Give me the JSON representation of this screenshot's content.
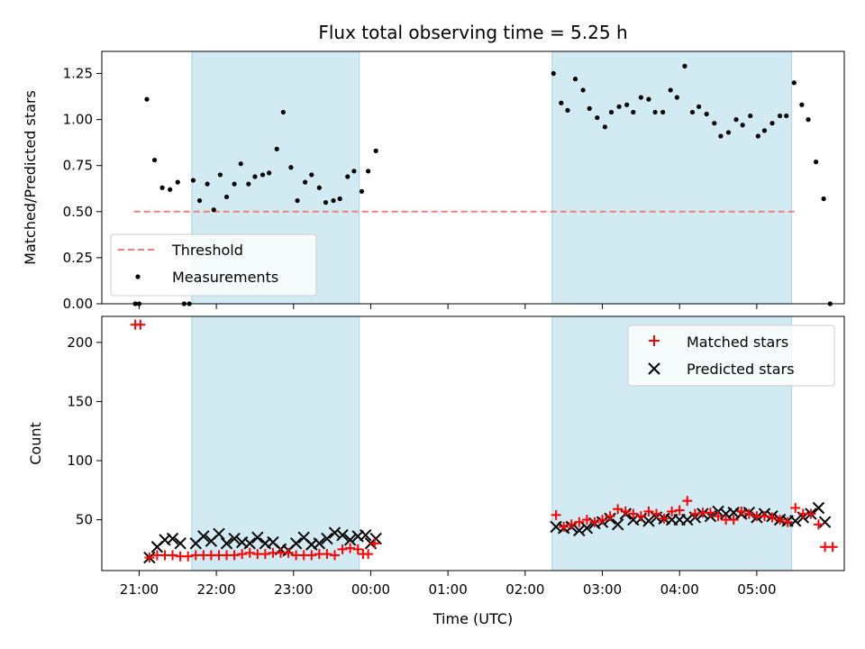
{
  "chart_data": [
    {
      "type": "scatter",
      "title": "Flux total observing time = 5.25 h",
      "xlabel": "",
      "ylabel": "Matched/Predicted stars",
      "xlim": [
        "20:31",
        "06:08"
      ],
      "ylim": [
        0,
        1.37
      ],
      "yticks": [
        0.0,
        0.25,
        0.5,
        0.75,
        1.0,
        1.25
      ],
      "ytick_labels": [
        "0.00",
        "0.25",
        "0.50",
        "0.75",
        "1.00",
        "1.25"
      ],
      "grid": false,
      "legend_position": "lower-left",
      "shaded_intervals": [
        [
          "21:41",
          "23:51"
        ],
        [
          "02:21",
          "05:27"
        ]
      ],
      "shade_color": "#add8e6",
      "threshold": {
        "name": "Threshold",
        "value": 0.5,
        "x": [
          "20:56",
          "05:31"
        ],
        "color": "#f08080",
        "style": "dashed"
      },
      "series": [
        {
          "name": "Measurements",
          "color": "#000000",
          "marker": "dot",
          "points": [
            [
              "20:57",
              0.0
            ],
            [
              "21:00",
              0.0
            ],
            [
              "21:06",
              1.11
            ],
            [
              "21:12",
              0.78
            ],
            [
              "21:18",
              0.63
            ],
            [
              "21:24",
              0.62
            ],
            [
              "21:30",
              0.66
            ],
            [
              "21:35",
              0.0
            ],
            [
              "21:39",
              0.0
            ],
            [
              "21:42",
              0.67
            ],
            [
              "21:47",
              0.56
            ],
            [
              "21:53",
              0.65
            ],
            [
              "21:58",
              0.51
            ],
            [
              "22:03",
              0.7
            ],
            [
              "22:08",
              0.58
            ],
            [
              "22:14",
              0.65
            ],
            [
              "22:19",
              0.76
            ],
            [
              "22:25",
              0.65
            ],
            [
              "22:30",
              0.69
            ],
            [
              "22:36",
              0.7
            ],
            [
              "22:41",
              0.71
            ],
            [
              "22:47",
              0.84
            ],
            [
              "22:52",
              1.04
            ],
            [
              "22:58",
              0.74
            ],
            [
              "23:03",
              0.56
            ],
            [
              "23:09",
              0.66
            ],
            [
              "23:14",
              0.7
            ],
            [
              "23:20",
              0.63
            ],
            [
              "23:25",
              0.55
            ],
            [
              "23:31",
              0.56
            ],
            [
              "23:36",
              0.57
            ],
            [
              "23:42",
              0.69
            ],
            [
              "23:47",
              0.72
            ],
            [
              "23:53",
              0.61
            ],
            [
              "23:58",
              0.72
            ],
            [
              "00:04",
              0.83
            ],
            [
              "02:22",
              1.25
            ],
            [
              "02:28",
              1.09
            ],
            [
              "02:33",
              1.05
            ],
            [
              "02:39",
              1.22
            ],
            [
              "02:45",
              1.16
            ],
            [
              "02:50",
              1.06
            ],
            [
              "02:56",
              1.01
            ],
            [
              "03:02",
              0.96
            ],
            [
              "03:07",
              1.04
            ],
            [
              "03:13",
              1.07
            ],
            [
              "03:19",
              1.08
            ],
            [
              "03:24",
              1.04
            ],
            [
              "03:30",
              1.12
            ],
            [
              "03:36",
              1.11
            ],
            [
              "03:41",
              1.04
            ],
            [
              "03:47",
              1.04
            ],
            [
              "03:53",
              1.16
            ],
            [
              "03:58",
              1.12
            ],
            [
              "04:04",
              1.29
            ],
            [
              "04:10",
              1.04
            ],
            [
              "04:15",
              1.07
            ],
            [
              "04:21",
              1.03
            ],
            [
              "04:27",
              0.98
            ],
            [
              "04:32",
              0.91
            ],
            [
              "04:38",
              0.93
            ],
            [
              "04:44",
              1.0
            ],
            [
              "04:49",
              0.97
            ],
            [
              "04:55",
              1.02
            ],
            [
              "05:01",
              0.91
            ],
            [
              "05:06",
              0.94
            ],
            [
              "05:12",
              0.98
            ],
            [
              "05:18",
              1.02
            ],
            [
              "05:23",
              1.02
            ],
            [
              "05:29",
              1.2
            ],
            [
              "05:35",
              1.08
            ],
            [
              "05:40",
              1.0
            ],
            [
              "05:46",
              0.77
            ],
            [
              "05:52",
              0.57
            ],
            [
              "05:57",
              0.0
            ]
          ]
        }
      ]
    },
    {
      "type": "scatter",
      "title": "",
      "xlabel": "Time (UTC)",
      "ylabel": "Count",
      "xlim": [
        "20:31",
        "06:08"
      ],
      "ylim": [
        7,
        222
      ],
      "xtick_labels": [
        "21:00",
        "22:00",
        "23:00",
        "00:00",
        "01:00",
        "02:00",
        "03:00",
        "04:00",
        "05:00"
      ],
      "yticks": [
        50,
        100,
        150,
        200
      ],
      "ytick_labels": [
        "50",
        "100",
        "150",
        "200"
      ],
      "grid": false,
      "legend_position": "upper-right",
      "shaded_intervals": [
        [
          "21:41",
          "23:51"
        ],
        [
          "02:21",
          "05:27"
        ]
      ],
      "shade_color": "#add8e6",
      "series": [
        {
          "name": "Matched stars",
          "color": "#ff0000",
          "marker": "plus",
          "points": [
            [
              "20:57",
              215
            ],
            [
              "21:01",
              215
            ],
            [
              "21:08",
              18
            ],
            [
              "21:14",
              20
            ],
            [
              "21:20",
              20
            ],
            [
              "21:26",
              20
            ],
            [
              "21:32",
              19
            ],
            [
              "21:38",
              19
            ],
            [
              "21:44",
              20
            ],
            [
              "21:50",
              20
            ],
            [
              "21:56",
              20
            ],
            [
              "22:02",
              20
            ],
            [
              "22:08",
              20
            ],
            [
              "22:14",
              20
            ],
            [
              "22:20",
              21
            ],
            [
              "22:26",
              22
            ],
            [
              "22:32",
              21
            ],
            [
              "22:38",
              21
            ],
            [
              "22:44",
              22
            ],
            [
              "22:50",
              22
            ],
            [
              "22:56",
              22
            ],
            [
              "23:02",
              20
            ],
            [
              "23:08",
              20
            ],
            [
              "23:14",
              20
            ],
            [
              "23:20",
              21
            ],
            [
              "23:26",
              21
            ],
            [
              "23:32",
              20
            ],
            [
              "23:38",
              25
            ],
            [
              "23:44",
              26
            ],
            [
              "23:50",
              25
            ],
            [
              "23:54",
              21
            ],
            [
              "23:58",
              21
            ],
            [
              "00:03",
              30
            ],
            [
              "02:24",
              54
            ],
            [
              "02:30",
              44
            ],
            [
              "02:36",
              46
            ],
            [
              "02:42",
              48
            ],
            [
              "02:48",
              50
            ],
            [
              "02:54",
              48
            ],
            [
              "03:00",
              50
            ],
            [
              "03:06",
              53
            ],
            [
              "03:12",
              59
            ],
            [
              "03:18",
              57
            ],
            [
              "03:24",
              55
            ],
            [
              "03:30",
              53
            ],
            [
              "03:36",
              57
            ],
            [
              "03:42",
              55
            ],
            [
              "03:48",
              51
            ],
            [
              "03:54",
              57
            ],
            [
              "04:00",
              58
            ],
            [
              "04:06",
              66
            ],
            [
              "04:12",
              55
            ],
            [
              "04:18",
              56
            ],
            [
              "04:24",
              56
            ],
            [
              "04:30",
              53
            ],
            [
              "04:36",
              50
            ],
            [
              "04:42",
              50
            ],
            [
              "04:48",
              57
            ],
            [
              "04:54",
              55
            ],
            [
              "05:00",
              53
            ],
            [
              "05:06",
              53
            ],
            [
              "05:12",
              52
            ],
            [
              "05:18",
              50
            ],
            [
              "05:24",
              48
            ],
            [
              "05:30",
              60
            ],
            [
              "05:36",
              55
            ],
            [
              "05:42",
              55
            ],
            [
              "05:48",
              46
            ],
            [
              "05:53",
              27
            ],
            [
              "05:59",
              27
            ]
          ]
        },
        {
          "name": "Predicted stars",
          "color": "#000000",
          "marker": "x",
          "points": [
            [
              "21:08",
              18
            ],
            [
              "21:14",
              27
            ],
            [
              "21:20",
              33
            ],
            [
              "21:26",
              34
            ],
            [
              "21:32",
              30
            ],
            [
              "21:44",
              30
            ],
            [
              "21:50",
              36
            ],
            [
              "21:56",
              32
            ],
            [
              "22:02",
              38
            ],
            [
              "22:08",
              30
            ],
            [
              "22:14",
              34
            ],
            [
              "22:20",
              31
            ],
            [
              "22:26",
              30
            ],
            [
              "22:32",
              35
            ],
            [
              "22:38",
              30
            ],
            [
              "22:44",
              31
            ],
            [
              "22:50",
              25
            ],
            [
              "22:56",
              24
            ],
            [
              "23:02",
              30
            ],
            [
              "23:08",
              35
            ],
            [
              "23:14",
              29
            ],
            [
              "23:20",
              30
            ],
            [
              "23:26",
              34
            ],
            [
              "23:32",
              39
            ],
            [
              "23:38",
              37
            ],
            [
              "23:44",
              33
            ],
            [
              "23:50",
              36
            ],
            [
              "23:56",
              37
            ],
            [
              "00:00",
              30
            ],
            [
              "00:04",
              34
            ],
            [
              "02:24",
              44
            ],
            [
              "02:30",
              43
            ],
            [
              "02:36",
              44
            ],
            [
              "02:42",
              41
            ],
            [
              "02:48",
              43
            ],
            [
              "02:54",
              47
            ],
            [
              "03:00",
              48
            ],
            [
              "03:06",
              51
            ],
            [
              "03:12",
              46
            ],
            [
              "03:18",
              55
            ],
            [
              "03:24",
              50
            ],
            [
              "03:30",
              51
            ],
            [
              "03:36",
              49
            ],
            [
              "03:42",
              52
            ],
            [
              "03:48",
              51
            ],
            [
              "03:54",
              50
            ],
            [
              "04:00",
              50
            ],
            [
              "04:06",
              50
            ],
            [
              "04:12",
              52
            ],
            [
              "04:18",
              55
            ],
            [
              "04:24",
              53
            ],
            [
              "04:30",
              57
            ],
            [
              "04:36",
              55
            ],
            [
              "04:42",
              56
            ],
            [
              "04:48",
              55
            ],
            [
              "04:54",
              56
            ],
            [
              "05:00",
              52
            ],
            [
              "05:06",
              55
            ],
            [
              "05:12",
              53
            ],
            [
              "05:18",
              50
            ],
            [
              "05:24",
              49
            ],
            [
              "05:30",
              49
            ],
            [
              "05:36",
              52
            ],
            [
              "05:42",
              55
            ],
            [
              "05:48",
              60
            ],
            [
              "05:53",
              48
            ]
          ]
        }
      ]
    }
  ]
}
